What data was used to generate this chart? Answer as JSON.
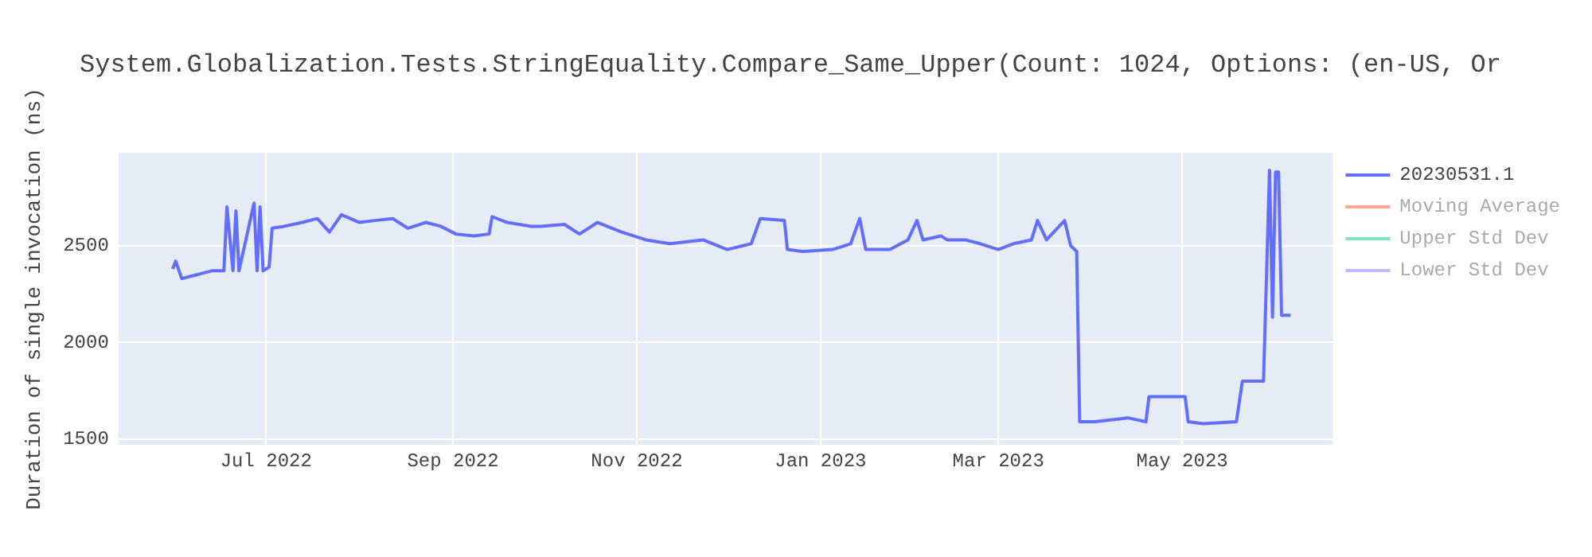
{
  "chart_data": {
    "type": "line",
    "title": "System.Globalization.Tests.StringEquality.Compare_Same_Upper(Count: 1024, Options: (en-US, Or",
    "ylabel": "Duration of single invocation (ns)",
    "xlim": [
      "2022-05-13",
      "2023-06-20"
    ],
    "xticks": [
      {
        "value": "2022-07-01",
        "label": "Jul 2022"
      },
      {
        "value": "2022-09-01",
        "label": "Sep 2022"
      },
      {
        "value": "2022-11-01",
        "label": "Nov 2022"
      },
      {
        "value": "2023-01-01",
        "label": "Jan 2023"
      },
      {
        "value": "2023-03-01",
        "label": "Mar 2023"
      },
      {
        "value": "2023-05-01",
        "label": "May 2023"
      }
    ],
    "ylim": [
      1470,
      2980
    ],
    "yticks": [
      1500,
      2000,
      2500
    ],
    "grid": true,
    "legend": "right",
    "marker": "none",
    "line_style": "solid",
    "series": [
      {
        "name": "20230531.1",
        "color": "#636efa",
        "x": [
          "2022-05-31",
          "2022-06-01",
          "2022-06-03",
          "2022-06-08",
          "2022-06-13",
          "2022-06-17",
          "2022-06-18",
          "2022-06-20",
          "2022-06-21",
          "2022-06-22",
          "2022-06-27",
          "2022-06-28",
          "2022-06-29",
          "2022-06-30",
          "2022-07-02",
          "2022-07-03",
          "2022-07-07",
          "2022-07-13",
          "2022-07-18",
          "2022-07-22",
          "2022-07-26",
          "2022-08-01",
          "2022-08-06",
          "2022-08-12",
          "2022-08-17",
          "2022-08-23",
          "2022-08-28",
          "2022-09-02",
          "2022-09-08",
          "2022-09-13",
          "2022-09-14",
          "2022-09-19",
          "2022-09-27",
          "2022-09-30",
          "2022-10-08",
          "2022-10-13",
          "2022-10-19",
          "2022-10-27",
          "2022-11-04",
          "2022-11-12",
          "2022-11-23",
          "2022-12-01",
          "2022-12-09",
          "2022-12-12",
          "2022-12-20",
          "2022-12-21",
          "2022-12-26",
          "2023-01-05",
          "2023-01-11",
          "2023-01-14",
          "2023-01-16",
          "2023-01-24",
          "2023-01-30",
          "2023-02-02",
          "2023-02-04",
          "2023-02-10",
          "2023-02-12",
          "2023-02-18",
          "2023-02-23",
          "2023-03-01",
          "2023-03-06",
          "2023-03-12",
          "2023-03-14",
          "2023-03-17",
          "2023-03-23",
          "2023-03-25",
          "2023-03-27",
          "2023-03-28",
          "2023-04-02",
          "2023-04-13",
          "2023-04-19",
          "2023-04-20",
          "2023-04-24",
          "2023-05-02",
          "2023-05-03",
          "2023-05-08",
          "2023-05-19",
          "2023-05-21",
          "2023-05-28",
          "2023-05-30",
          "2023-05-31",
          "2023-06-01",
          "2023-06-02",
          "2023-06-03",
          "2023-06-06"
        ],
        "values": [
          2380,
          2420,
          2330,
          2350,
          2370,
          2370,
          2700,
          2370,
          2680,
          2370,
          2720,
          2370,
          2700,
          2370,
          2390,
          2590,
          2600,
          2620,
          2640,
          2570,
          2660,
          2620,
          2630,
          2640,
          2590,
          2620,
          2600,
          2560,
          2550,
          2560,
          2650,
          2620,
          2600,
          2600,
          2610,
          2560,
          2620,
          2570,
          2530,
          2510,
          2530,
          2480,
          2510,
          2640,
          2630,
          2480,
          2470,
          2480,
          2510,
          2640,
          2480,
          2480,
          2530,
          2630,
          2530,
          2550,
          2530,
          2530,
          2510,
          2480,
          2510,
          2530,
          2630,
          2530,
          2630,
          2500,
          2470,
          1590,
          1590,
          1610,
          1590,
          1720,
          1720,
          1720,
          1590,
          1580,
          1590,
          1800,
          1800,
          2890,
          2130,
          2880,
          2880,
          2140,
          2140
        ]
      },
      {
        "name": "Moving Average",
        "color": "#f6a999"
      },
      {
        "name": "Upper Std Dev",
        "color": "#7ee5bf"
      },
      {
        "name": "Lower Std Dev",
        "color": "#c9b5fb"
      }
    ]
  }
}
